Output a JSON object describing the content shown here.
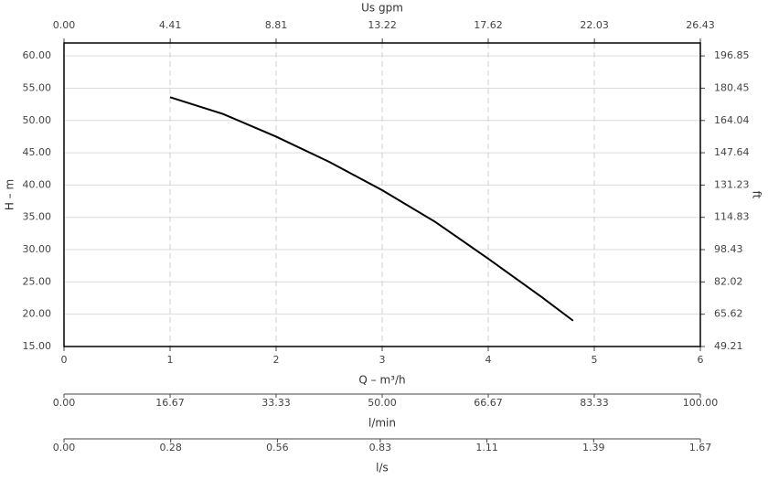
{
  "chart_data": {
    "type": "line",
    "x": [
      1,
      1.5,
      2,
      2.5,
      3,
      3.5,
      4,
      4.5,
      4.8
    ],
    "series": [
      {
        "color": "#000000",
        "values": [
          53.6,
          51.0,
          47.5,
          43.6,
          39.2,
          34.3,
          28.6,
          22.7,
          19.0
        ]
      }
    ],
    "xlabel": "Q – m³/h",
    "xlim": [
      0,
      6
    ],
    "xticks": [
      0,
      1,
      2,
      3,
      4,
      5,
      6
    ],
    "ylabel": "H – m",
    "ylim": [
      15,
      62
    ],
    "yticks": [
      {
        "value": 15,
        "label": "15.00"
      },
      {
        "value": 20,
        "label": "20.00"
      },
      {
        "value": 25,
        "label": "25.00"
      },
      {
        "value": 30,
        "label": "30.00"
      },
      {
        "value": 35,
        "label": "35.00"
      },
      {
        "value": 40,
        "label": "40.00"
      },
      {
        "value": 45,
        "label": "45.00"
      },
      {
        "value": 50,
        "label": "50.00"
      },
      {
        "value": 55,
        "label": "55.00"
      },
      {
        "value": 60,
        "label": "60.00"
      }
    ],
    "y2label": "ft",
    "y2lim": [
      49.21,
      203.41
    ],
    "y2ticks": [
      49.21,
      65.62,
      82.02,
      98.43,
      114.83,
      131.23,
      147.64,
      164.04,
      180.45,
      196.85
    ],
    "x_top": {
      "label": "Us gpm",
      "lim": [
        0,
        26.43
      ],
      "ticks": [
        {
          "value": 0,
          "label": "0.00"
        },
        4.41,
        8.81,
        13.22,
        17.62,
        22.03,
        26.43
      ]
    },
    "x_extra": [
      {
        "label": "l/min",
        "lim": [
          0,
          100
        ],
        "ticks": [
          {
            "value": 0,
            "label": "0.00"
          },
          16.67,
          33.33,
          {
            "value": 50,
            "label": "50.00"
          },
          66.67,
          83.33,
          {
            "value": 100,
            "label": "100.00"
          }
        ]
      },
      {
        "label": "l/s",
        "lim": [
          0,
          1.67
        ],
        "ticks": [
          {
            "value": 0,
            "label": "0.00"
          },
          0.28,
          0.56,
          0.83,
          1.11,
          1.39,
          1.67
        ]
      }
    ],
    "grid": true
  }
}
